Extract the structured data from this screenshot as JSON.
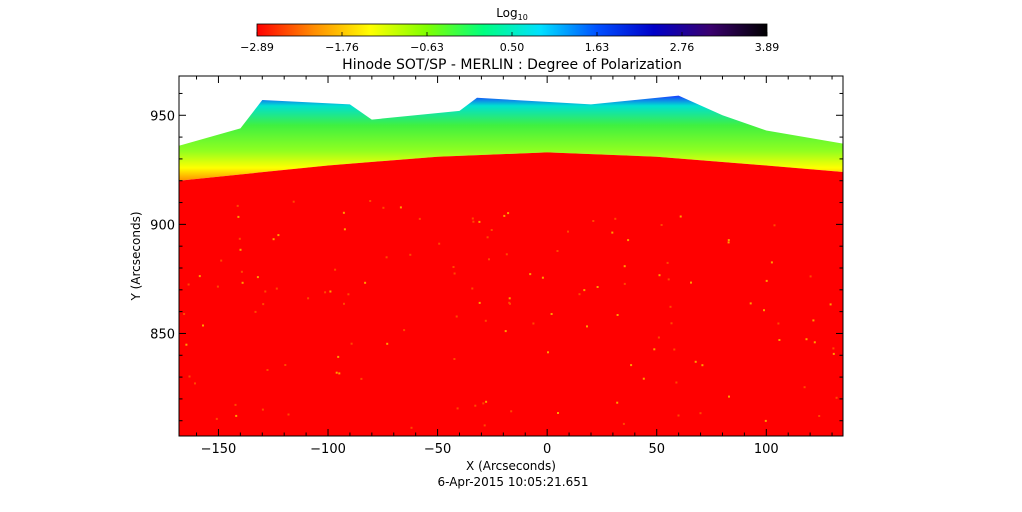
{
  "colorbar": {
    "label_base": "Log",
    "label_sub": "10",
    "min": -2.89,
    "max": 3.89,
    "ticks": [
      "-2.89",
      "-1.76",
      "-0.63",
      "0.50",
      "1.63",
      "2.76",
      "3.89"
    ],
    "colormap": [
      "#ff0000",
      "#ff8c00",
      "#ffff00",
      "#7fff00",
      "#00ff7f",
      "#00e0ff",
      "#0050ff",
      "#0000c8",
      "#3a006e",
      "#000000"
    ]
  },
  "chart_data": {
    "type": "heatmap",
    "title": "Hinode SOT/SP - MERLIN : Degree of Polarization",
    "xlabel": "X (Arcseconds)",
    "ylabel": "Y (Arcseconds)",
    "xlim": [
      -168,
      135
    ],
    "ylim": [
      803,
      968
    ],
    "x_ticks": [
      -150,
      -100,
      -50,
      0,
      50,
      100
    ],
    "y_ticks": [
      850,
      900,
      950
    ],
    "x_tick_labels": [
      "−150",
      "−100",
      "−50",
      "0",
      "50",
      "100"
    ],
    "y_tick_labels": [
      "850",
      "900",
      "950"
    ],
    "limb_edge": [
      [
        -168,
        920
      ],
      [
        -100,
        927
      ],
      [
        -50,
        931
      ],
      [
        0,
        933
      ],
      [
        50,
        931
      ],
      [
        100,
        927
      ],
      [
        135,
        924
      ]
    ],
    "off_limb_top": [
      [
        -168,
        936
      ],
      [
        -140,
        944
      ],
      [
        -130,
        957
      ],
      [
        -90,
        955
      ],
      [
        -80,
        948
      ],
      [
        -40,
        952
      ],
      [
        -32,
        958
      ],
      [
        -15,
        957
      ],
      [
        20,
        955
      ],
      [
        40,
        957
      ],
      [
        60,
        959
      ],
      [
        80,
        950
      ],
      [
        100,
        943
      ],
      [
        135,
        937
      ]
    ],
    "disk_color": "#ff0000",
    "timestamp": "6-Apr-2015 10:05:21.651"
  }
}
